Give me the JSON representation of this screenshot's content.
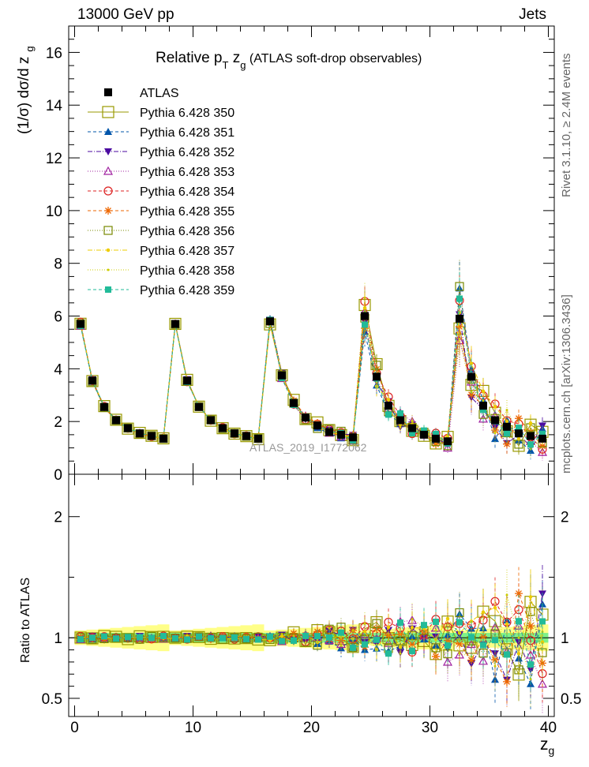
{
  "header": {
    "left": "13000 GeV pp",
    "right": "Jets",
    "side_top": "Rivet 3.1.10, ≥ 2.4M events",
    "side_bottom": "mcplots.cern.ch [arXiv:1306.3436]",
    "watermark": "ATLAS_2019_I1772062"
  },
  "chart_data": {
    "type": "scatter",
    "title_main": "Relative p",
    "title_sub1": "T",
    "title_mid": " z",
    "title_sub2": "g",
    "title_rest": " (ATLAS soft-drop observables)",
    "ylabel": "(1/σ) dσ/d z",
    "ylabel_sub": "g",
    "xlabel": "z",
    "xlabel_sub": "g",
    "ratio_ylabel": "Ratio to ATLAS",
    "xlim": [
      -0.5,
      40.5
    ],
    "ylim": [
      0,
      17
    ],
    "ratio_ylim": [
      0.35,
      2.35
    ],
    "xticks": [
      "0",
      "10",
      "20",
      "30",
      "40"
    ],
    "yticks": [
      "0",
      "2",
      "4",
      "6",
      "8",
      "10",
      "12",
      "14",
      "16"
    ],
    "ratio_yticks": [
      "0.5",
      "1",
      "2"
    ],
    "x": [
      0.5,
      1.5,
      2.5,
      3.5,
      4.5,
      5.5,
      6.5,
      7.5,
      8.5,
      9.5,
      10.5,
      11.5,
      12.5,
      13.5,
      14.5,
      15.5,
      16.5,
      17.5,
      18.5,
      19.5,
      20.5,
      21.5,
      22.5,
      23.5,
      24.5,
      25.5,
      26.5,
      27.5,
      28.5,
      29.5,
      30.5,
      31.5,
      32.5,
      33.5,
      34.5,
      35.5,
      36.5,
      37.5,
      38.5,
      39.5
    ],
    "atlas": [
      5.7,
      3.55,
      2.55,
      2.05,
      1.75,
      1.55,
      1.45,
      1.35,
      5.7,
      3.55,
      2.55,
      2.05,
      1.75,
      1.55,
      1.45,
      1.35,
      5.8,
      3.75,
      2.7,
      2.15,
      1.85,
      1.6,
      1.5,
      1.4,
      6.0,
      3.7,
      2.6,
      2.05,
      1.75,
      1.5,
      1.35,
      1.25,
      5.9,
      3.7,
      2.6,
      2.05,
      1.8,
      1.55,
      1.45,
      1.35
    ],
    "ratio_band": {
      "stat": 0.04,
      "total": 0.06
    },
    "series": [
      {
        "name": "ATLAS",
        "color": "#000000",
        "marker": "square-filled",
        "line": "none"
      },
      {
        "name": "Pythia 6.428 350",
        "color": "#999900",
        "marker": "square-open-large",
        "line": "solid",
        "seed": 1
      },
      {
        "name": "Pythia 6.428 351",
        "color": "#0055aa",
        "marker": "triangle-up-filled",
        "line": "dashed",
        "seed": 2
      },
      {
        "name": "Pythia 6.428 352",
        "color": "#4b0aa0",
        "marker": "triangle-down-filled",
        "line": "dashdot",
        "seed": 3
      },
      {
        "name": "Pythia 6.428 353",
        "color": "#a020a0",
        "marker": "triangle-up-open",
        "line": "dotted",
        "seed": 4
      },
      {
        "name": "Pythia 6.428 354",
        "color": "#dd2222",
        "marker": "circle-open",
        "line": "dashed",
        "seed": 5
      },
      {
        "name": "Pythia 6.428 355",
        "color": "#ee6600",
        "marker": "star",
        "line": "dashed",
        "seed": 6
      },
      {
        "name": "Pythia 6.428 356",
        "color": "#778800",
        "marker": "square-open",
        "line": "dotted",
        "seed": 7
      },
      {
        "name": "Pythia 6.428 357",
        "color": "#eecc00",
        "marker": "dot",
        "line": "dashdot",
        "seed": 8
      },
      {
        "name": "Pythia 6.428 358",
        "color": "#cccc00",
        "marker": "dot-small",
        "line": "dotted",
        "seed": 9
      },
      {
        "name": "Pythia 6.428 359",
        "color": "#22bb99",
        "marker": "square-small",
        "line": "dashed",
        "seed": 10
      }
    ]
  }
}
